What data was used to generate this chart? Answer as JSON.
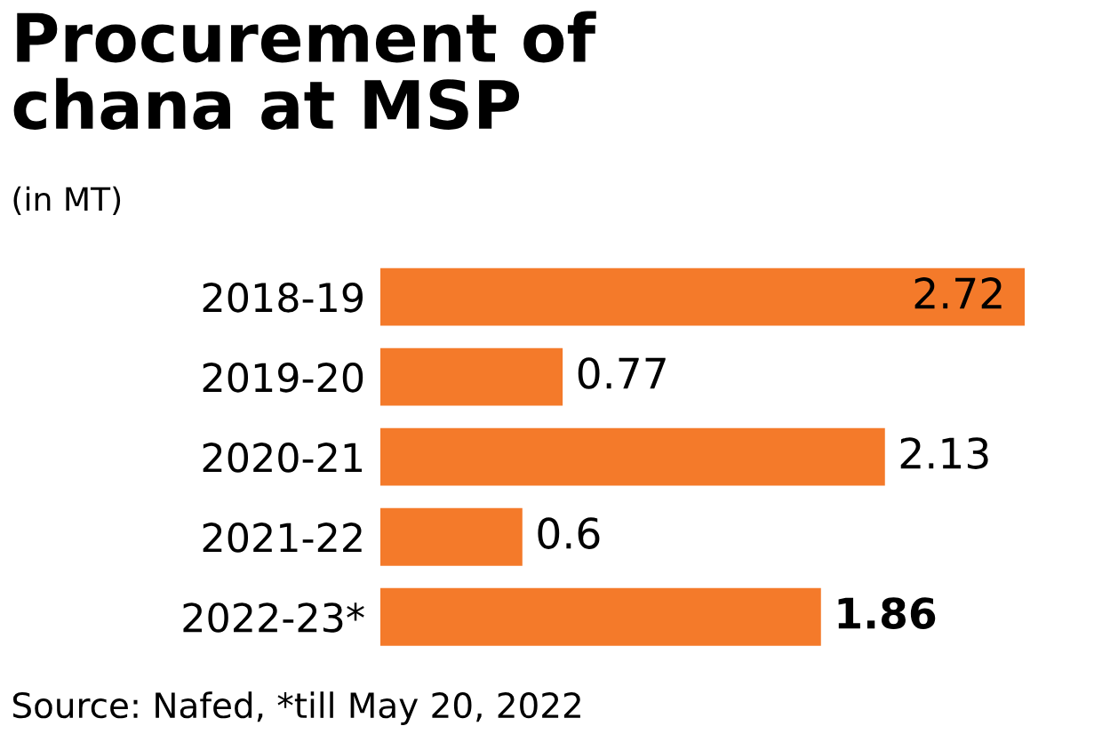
{
  "chart_data": {
    "type": "bar",
    "orientation": "horizontal",
    "title": "Procurement of\nchana at MSP",
    "subtitle": "(in MT)",
    "categories": [
      "2018-19",
      "2019-20",
      "2020-21",
      "2021-22",
      "2022-23*"
    ],
    "values": [
      2.72,
      0.77,
      2.13,
      0.6,
      1.86
    ],
    "color": "#f47a2a",
    "data_labels": true,
    "grid": false,
    "legend": false,
    "tick_labels": "y",
    "annotations": [
      "Source: Nafed, *till May 20, 2022"
    ]
  }
}
